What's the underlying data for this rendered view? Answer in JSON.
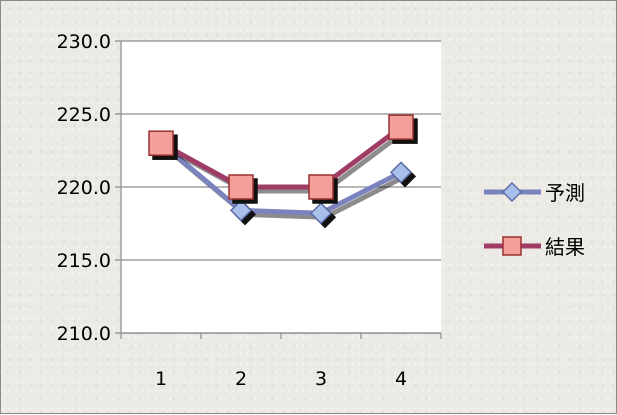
{
  "chart_data": {
    "type": "line",
    "categories": [
      "1",
      "2",
      "3",
      "4"
    ],
    "series": [
      {
        "name": "予測",
        "values": [
          223.0,
          218.4,
          218.2,
          221.0
        ],
        "color": "#7b83bf",
        "marker": "diamond"
      },
      {
        "name": "結果",
        "values": [
          223.0,
          220.0,
          220.0,
          224.1
        ],
        "color": "#a03d67",
        "marker": "square"
      }
    ],
    "y_ticks": [
      "230.0",
      "225.0",
      "220.0",
      "215.0",
      "210.0"
    ],
    "ylim": [
      210,
      230
    ],
    "grid": true,
    "legend_position": "right",
    "title": "",
    "xlabel": "",
    "ylabel": ""
  }
}
